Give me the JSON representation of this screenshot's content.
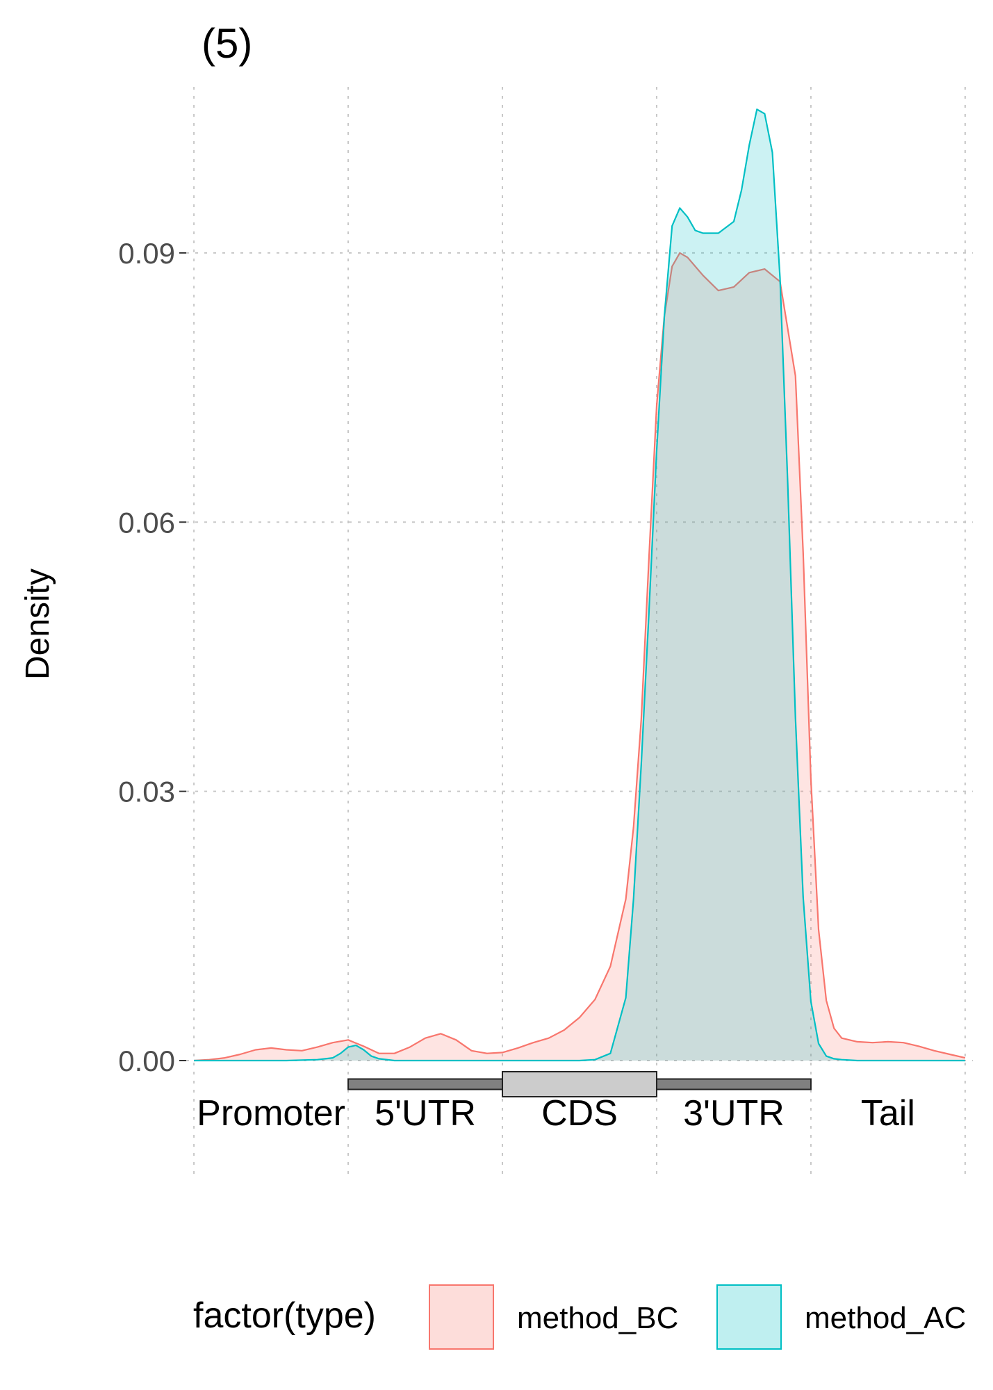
{
  "chart_data": {
    "type": "area",
    "title": "(5)",
    "ylabel": "Density",
    "xlabel": "",
    "xlim": [
      -1.05,
      4.05
    ],
    "ylim": [
      -0.0127,
      0.1085
    ],
    "y_ticks": [
      0,
      0.03,
      0.06,
      0.09
    ],
    "y_tick_labels": [
      "0.00",
      "0.03",
      "0.06",
      "0.09"
    ],
    "x_gridlines": [
      -1,
      0,
      1,
      2,
      3,
      4
    ],
    "grid": true,
    "regions": [
      {
        "label": "Promoter",
        "center": -0.5
      },
      {
        "label": "5'UTR",
        "center": 0.5
      },
      {
        "label": "CDS",
        "center": 1.5
      },
      {
        "label": "3'UTR",
        "center": 2.5
      },
      {
        "label": "Tail",
        "center": 3.5
      }
    ],
    "gene_model": [
      {
        "start": 0,
        "end": 1,
        "kind": "utr"
      },
      {
        "start": 1,
        "end": 2,
        "kind": "cds"
      },
      {
        "start": 2,
        "end": 3,
        "kind": "utr"
      }
    ],
    "legend": {
      "title": "factor(type)",
      "position": "bottom"
    },
    "series": [
      {
        "name": "method_BC",
        "line_color": "#F8766D",
        "fill_color": "#F8766D",
        "x": [
          -1.0,
          -0.9,
          -0.8,
          -0.7,
          -0.6,
          -0.5,
          -0.4,
          -0.3,
          -0.2,
          -0.1,
          0.0,
          0.1,
          0.2,
          0.3,
          0.4,
          0.5,
          0.6,
          0.7,
          0.8,
          0.9,
          1.0,
          1.1,
          1.2,
          1.3,
          1.4,
          1.5,
          1.6,
          1.7,
          1.8,
          1.85,
          1.9,
          1.95,
          2.0,
          2.05,
          2.1,
          2.15,
          2.2,
          2.3,
          2.4,
          2.5,
          2.6,
          2.7,
          2.8,
          2.9,
          2.95,
          3.0,
          3.05,
          3.1,
          3.15,
          3.2,
          3.3,
          3.4,
          3.5,
          3.6,
          3.7,
          3.8,
          3.9,
          4.0
        ],
        "y": [
          0.0,
          0.0001,
          0.0003,
          0.0007,
          0.0012,
          0.0014,
          0.0012,
          0.0011,
          0.0015,
          0.002,
          0.0023,
          0.0016,
          0.0008,
          0.0008,
          0.0015,
          0.0025,
          0.003,
          0.0023,
          0.0011,
          0.0008,
          0.0009,
          0.0014,
          0.002,
          0.0025,
          0.0034,
          0.0048,
          0.0068,
          0.0105,
          0.018,
          0.026,
          0.038,
          0.056,
          0.073,
          0.083,
          0.0885,
          0.09,
          0.0895,
          0.0875,
          0.0858,
          0.0862,
          0.0878,
          0.0882,
          0.0868,
          0.0763,
          0.0566,
          0.0314,
          0.0146,
          0.0067,
          0.0036,
          0.0025,
          0.0021,
          0.002,
          0.0021,
          0.002,
          0.0016,
          0.0011,
          0.0007,
          0.0003
        ]
      },
      {
        "name": "method_AC",
        "line_color": "#00BFC4",
        "fill_color": "#00BFC4",
        "x": [
          -1.0,
          -0.6,
          -0.4,
          -0.2,
          -0.1,
          -0.05,
          0.0,
          0.05,
          0.1,
          0.15,
          0.2,
          0.3,
          0.5,
          1.0,
          1.5,
          1.6,
          1.7,
          1.8,
          1.85,
          1.9,
          1.95,
          2.0,
          2.05,
          2.1,
          2.15,
          2.2,
          2.25,
          2.3,
          2.4,
          2.5,
          2.55,
          2.6,
          2.65,
          2.7,
          2.75,
          2.8,
          2.85,
          2.9,
          2.95,
          3.0,
          3.05,
          3.1,
          3.15,
          3.2,
          3.3,
          3.5,
          4.0
        ],
        "y": [
          0.0,
          0.0,
          0.0,
          0.0001,
          0.0003,
          0.0008,
          0.0015,
          0.0017,
          0.0012,
          0.0005,
          0.0002,
          0.0,
          0.0,
          0.0,
          0.0,
          0.0001,
          0.0008,
          0.007,
          0.018,
          0.033,
          0.05,
          0.068,
          0.083,
          0.093,
          0.095,
          0.094,
          0.0925,
          0.0922,
          0.0922,
          0.0935,
          0.097,
          0.102,
          0.106,
          0.1055,
          0.1012,
          0.0872,
          0.0643,
          0.0382,
          0.0182,
          0.0066,
          0.0019,
          0.0005,
          0.0002,
          0.0001,
          0.0,
          0.0,
          0.0
        ]
      }
    ]
  }
}
